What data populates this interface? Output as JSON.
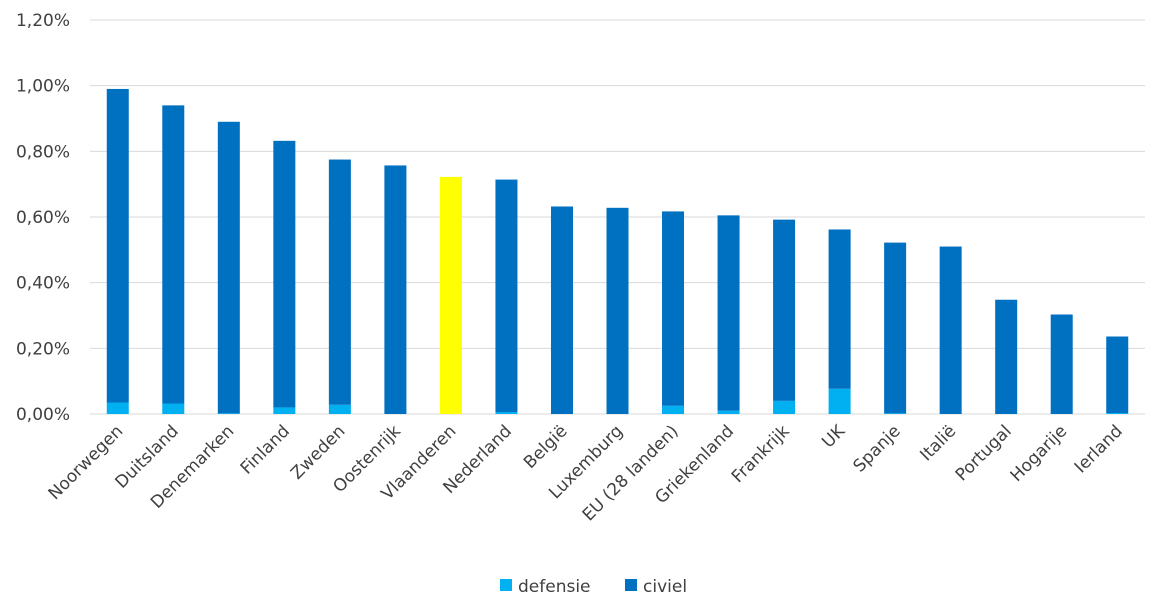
{
  "chart_data": {
    "type": "bar",
    "stacked": true,
    "categories": [
      "Noorwegen",
      "Duitsland",
      "Denemarken",
      "Finland",
      "Zweden",
      "Oostenrijk",
      "Vlaanderen",
      "Nederland",
      "België",
      "Luxemburg",
      "EU (28 landen)",
      "Griekenland",
      "Frankrijk",
      "UK",
      "Spanje",
      "Italië",
      "Portugal",
      "Hogarije",
      "Ierland"
    ],
    "series": [
      {
        "name": "defensie",
        "color": "#00B0F0",
        "values": [
          0.035,
          0.032,
          0.002,
          0.02,
          0.028,
          0.0,
          0.0,
          0.006,
          0.0,
          0.0,
          0.025,
          0.01,
          0.04,
          0.077,
          0.002,
          0.0,
          0.0,
          0.0,
          0.003
        ]
      },
      {
        "name": "civiel",
        "color": "#0070C0",
        "values": [
          0.955,
          0.908,
          0.888,
          0.812,
          0.747,
          0.757,
          0.722,
          0.708,
          0.632,
          0.628,
          0.592,
          0.595,
          0.552,
          0.485,
          0.52,
          0.51,
          0.348,
          0.303,
          0.233
        ]
      }
    ],
    "highlight": {
      "category": "Vlaanderen",
      "color": "#FFFF00"
    },
    "ylim": [
      0,
      1.2
    ],
    "yticks": [
      0,
      0.2,
      0.4,
      0.6,
      0.8,
      1.0,
      1.2
    ],
    "ytick_labels": [
      "0,00%",
      "0,20%",
      "0,40%",
      "0,60%",
      "0,80%",
      "1,00%",
      "1,20%"
    ],
    "grid": true,
    "legend_position": "bottom",
    "gridline_color": "#d9d9d9"
  }
}
